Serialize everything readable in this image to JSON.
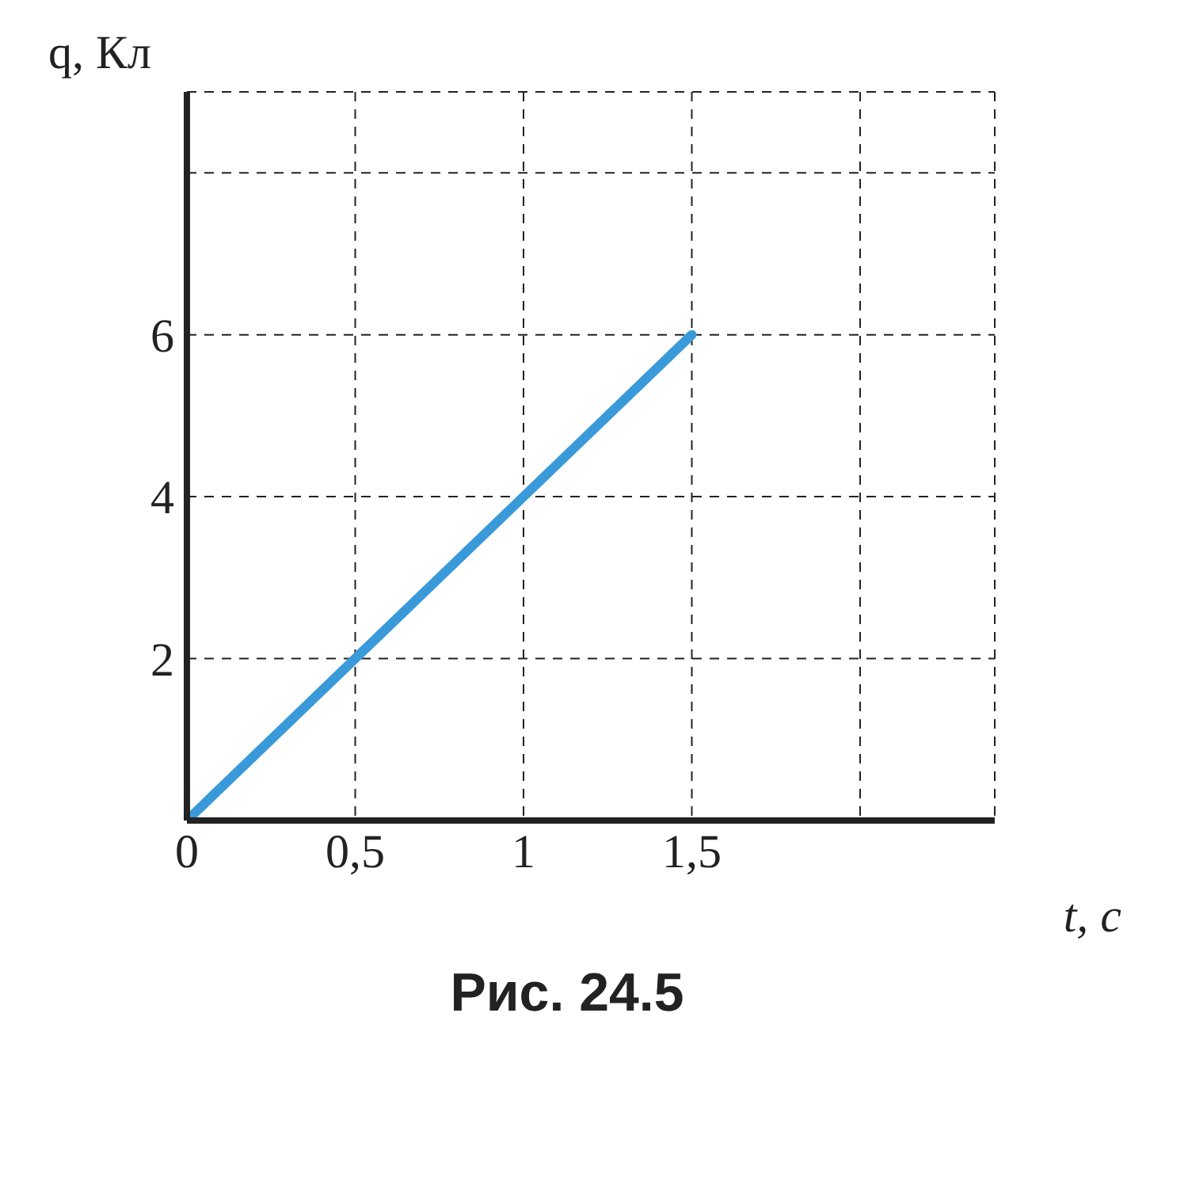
{
  "chart_data": {
    "type": "line",
    "xlabel": "t, с",
    "ylabel": "q, Кл",
    "x": [
      0,
      1.5
    ],
    "series": [
      {
        "color": "#3a9ad9",
        "values": [
          0,
          6
        ]
      }
    ],
    "xlim": [
      0,
      2.4
    ],
    "ylim": [
      0,
      9
    ],
    "xticks": [
      0,
      {
        "value": 0.5,
        "label": "0,5"
      },
      1,
      {
        "value": 1.5,
        "label": "1,5"
      },
      {
        "value": 2,
        "label": null
      }
    ],
    "yticks": [
      2,
      4,
      6,
      {
        "value": 8,
        "label": null
      }
    ],
    "grid": true,
    "line_style": "solid",
    "marker": "none",
    "annotations": [
      "Рис. 24.5"
    ]
  }
}
